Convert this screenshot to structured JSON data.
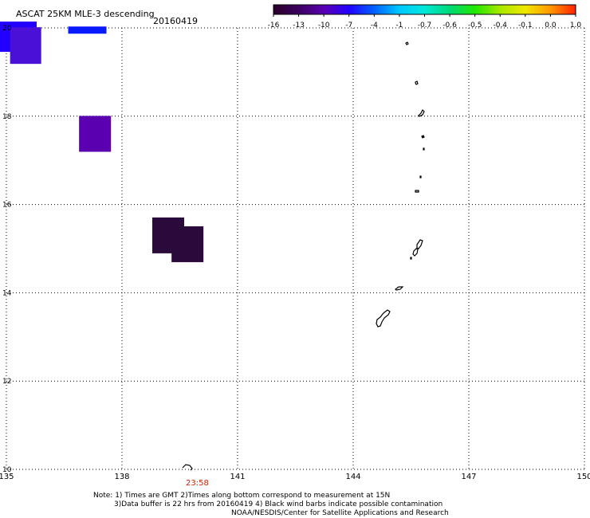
{
  "header": {
    "title": "ASCAT 25KM MLE-3 descending",
    "date": "20160419"
  },
  "colorbar": {
    "labels": [
      "-16",
      "-13",
      "-10",
      "-7",
      "-4",
      "-1",
      "-0.7",
      "-0.6",
      "-0.5",
      "-0.4",
      "-0.1",
      "0.0",
      "1.0"
    ],
    "colors": [
      "#2a0028",
      "#3c0060",
      "#5a00b0",
      "#2200ff",
      "#0060ff",
      "#00c8ff",
      "#00e8d8",
      "#00d878",
      "#20e800",
      "#a8e800",
      "#f0e800",
      "#ff9800",
      "#ff2000"
    ]
  },
  "map": {
    "lon_labels": [
      "135",
      "138",
      "141",
      "144",
      "147",
      "150"
    ],
    "lat_labels": [
      "20",
      "18",
      "16",
      "14",
      "12",
      "10"
    ],
    "lon_range": [
      135,
      150
    ],
    "lat_range": [
      10,
      20
    ],
    "grid": true,
    "time_marker": "23:58",
    "data_cells": [
      {
        "lon": 135.3,
        "lat": 19.8,
        "value_color": "#2200ff"
      },
      {
        "lon": 135.5,
        "lat": 19.6,
        "value_color": "#4a10d8"
      },
      {
        "lon": 137.1,
        "lat": 19.95,
        "value_color": "#0a1aff"
      },
      {
        "lon": 137.3,
        "lat": 17.6,
        "value_color": "#5a00b0"
      },
      {
        "lon": 139.2,
        "lat": 15.3,
        "value_color": "#2a0a3a"
      },
      {
        "lon": 139.7,
        "lat": 15.1,
        "value_color": "#2a0a3a"
      }
    ]
  },
  "footer": {
    "note_line1": "Note: 1) Times are GMT 2)Times along bottom correspond to measurement at 15N",
    "note_line2": "3)Data buffer is 22 hrs from 20160419 4) Black wind barbs indicate possible contamination",
    "credit": "NOAA/NESDIS/Center for Satellite Applications and Research"
  }
}
